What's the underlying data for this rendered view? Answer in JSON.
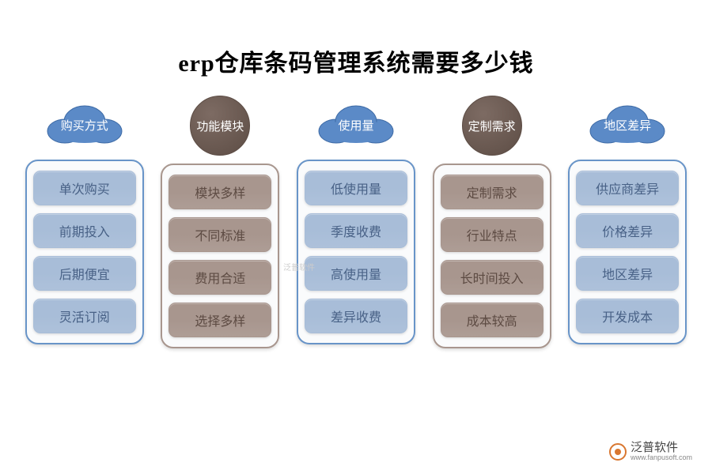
{
  "title": "erp仓库条码管理系统需要多少钱",
  "colors": {
    "cloud_fill": "#5b8ac7",
    "cloud_stroke": "#3d6aa5",
    "circle_fill": "#7d6b63",
    "circle_stroke": "#5d4d45",
    "item_blue_bg": "#a8bdd8",
    "item_blue_fg": "#486186",
    "item_brown_bg": "#a8968e",
    "item_brown_fg": "#5d4b43",
    "border_blue": "#6894c8",
    "border_brown": "#a8968e",
    "box_bg": "#fafbfc"
  },
  "columns": [
    {
      "header": "购买方式",
      "type": "cloud",
      "theme": "blue",
      "items": [
        "单次购买",
        "前期投入",
        "后期便宜",
        "灵活订阅"
      ]
    },
    {
      "header": "功能模块",
      "type": "circle",
      "theme": "brown",
      "items": [
        "模块多样",
        "不同标准",
        "费用合适",
        "选择多样"
      ]
    },
    {
      "header": "使用量",
      "type": "cloud",
      "theme": "blue",
      "items": [
        "低使用量",
        "季度收费",
        "高使用量",
        "差异收费"
      ]
    },
    {
      "header": "定制需求",
      "type": "circle",
      "theme": "brown",
      "items": [
        "定制需求",
        "行业特点",
        "长时间投入",
        "成本较高"
      ]
    },
    {
      "header": "地区差异",
      "type": "cloud",
      "theme": "blue",
      "items": [
        "供应商差异",
        "价格差异",
        "地区差异",
        "开发成本"
      ]
    }
  ],
  "watermark": {
    "main": "泛普软件",
    "sub": "www.fanpusoft.com"
  },
  "center_watermark": "泛普软件"
}
